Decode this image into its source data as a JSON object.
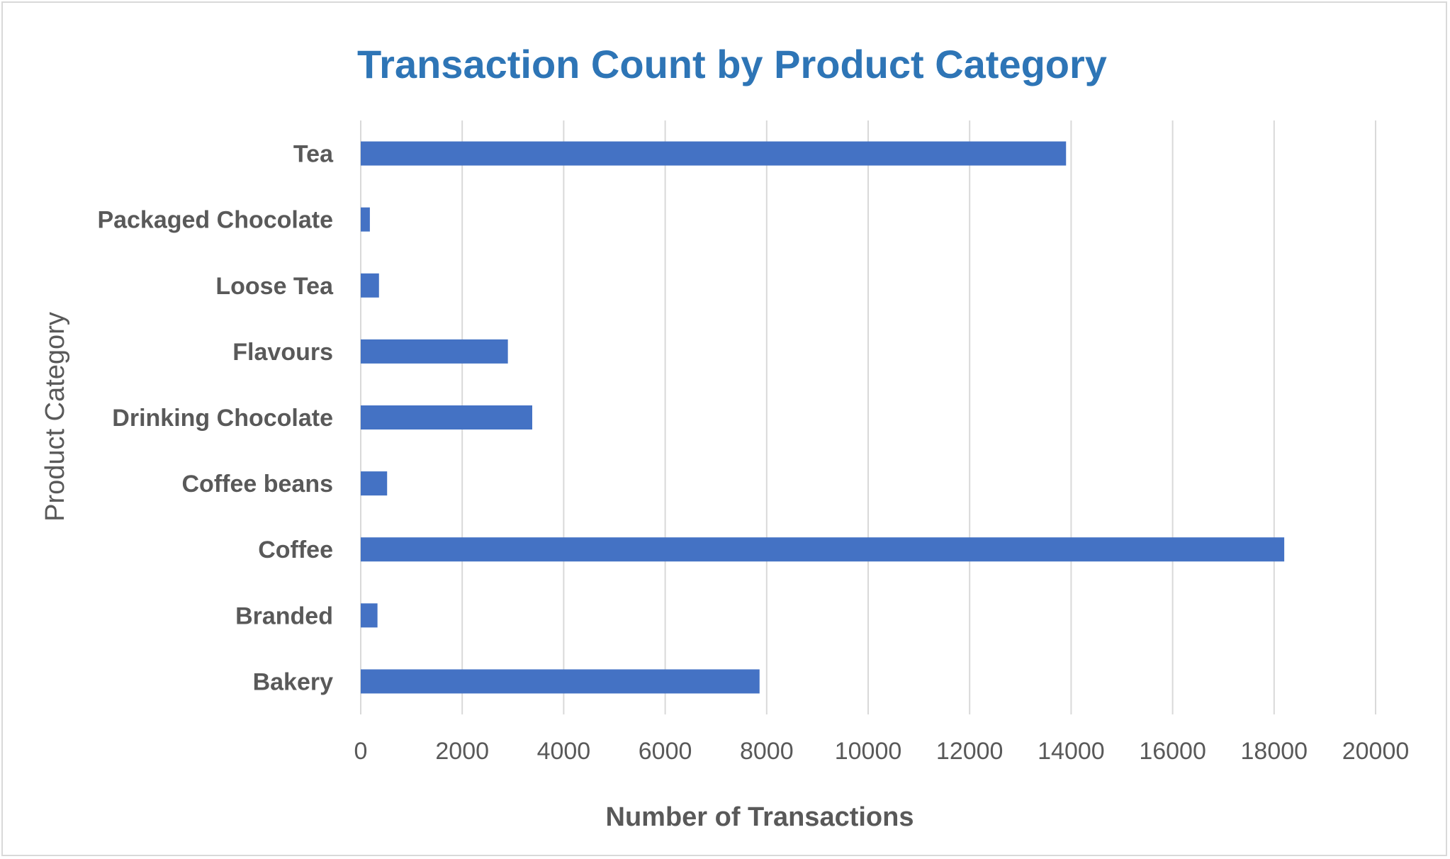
{
  "chart_data": {
    "type": "bar",
    "orientation": "horizontal",
    "title": "Transaction Count by Product Category",
    "xlabel": "Number of Transactions",
    "ylabel": "Product Category",
    "categories": [
      "Tea",
      "Packaged Chocolate",
      "Loose Tea",
      "Flavours",
      "Drinking Chocolate",
      "Coffee beans",
      "Coffee",
      "Branded",
      "Bakery"
    ],
    "values": [
      13900,
      180,
      360,
      2900,
      3380,
      520,
      18200,
      330,
      7860
    ],
    "xlim": [
      0,
      20000
    ],
    "xticks": [
      "0",
      "2000",
      "4000",
      "6000",
      "8000",
      "10000",
      "12000",
      "14000",
      "16000",
      "18000",
      "20000"
    ],
    "grid": "vertical",
    "legend": "none",
    "bar_color": "#4472c4",
    "title_color": "#2e75b6"
  }
}
